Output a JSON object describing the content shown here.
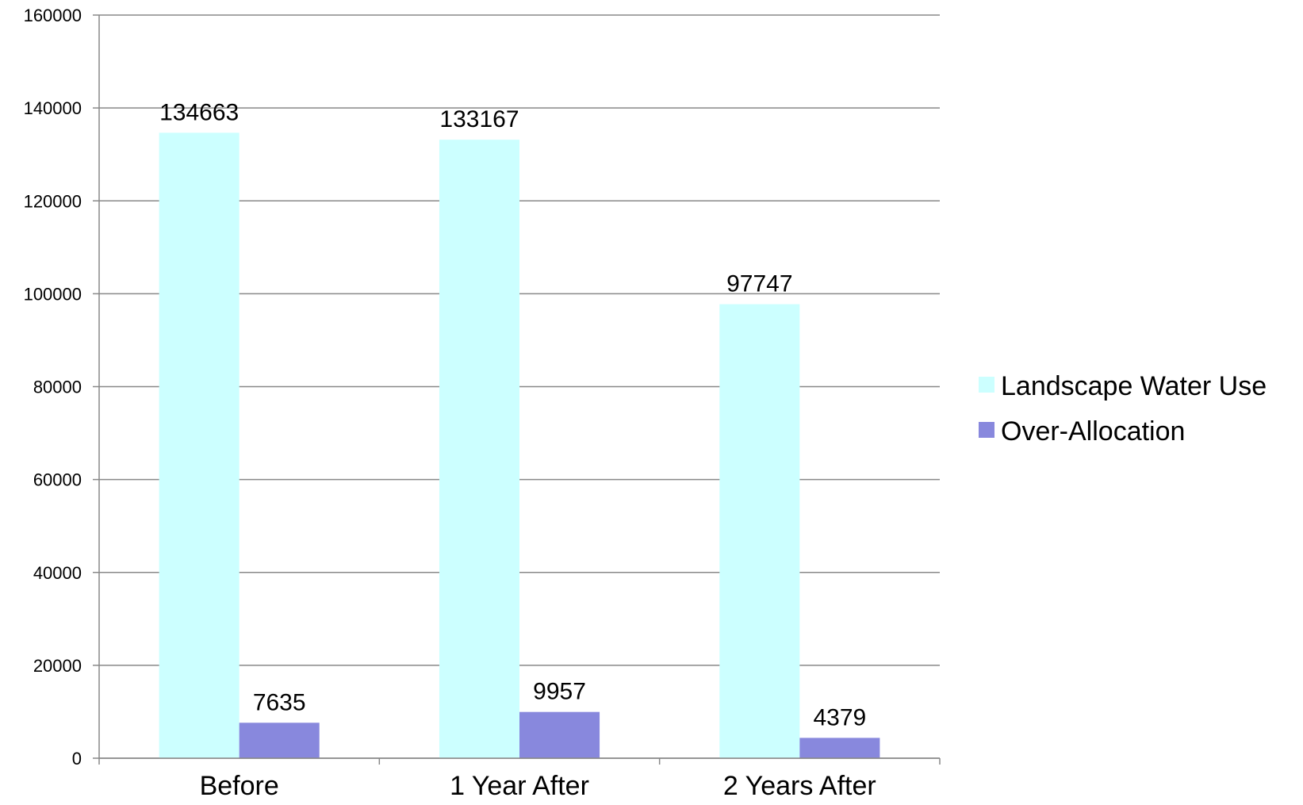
{
  "chart_data": {
    "type": "bar",
    "categories": [
      "Before",
      "1 Year After",
      "2 Years After"
    ],
    "series": [
      {
        "name": "Landscape Water Use",
        "values": [
          134663,
          133167,
          97747
        ],
        "color": "#ccffff"
      },
      {
        "name": "Over-Allocation",
        "values": [
          7635,
          9957,
          4379
        ],
        "color": "#8888dd"
      }
    ],
    "ylim": [
      0,
      160000
    ],
    "yticks": [
      0,
      20000,
      40000,
      60000,
      80000,
      100000,
      120000,
      140000,
      160000
    ],
    "data_labels": true,
    "grid": true,
    "legend_position": "right"
  }
}
